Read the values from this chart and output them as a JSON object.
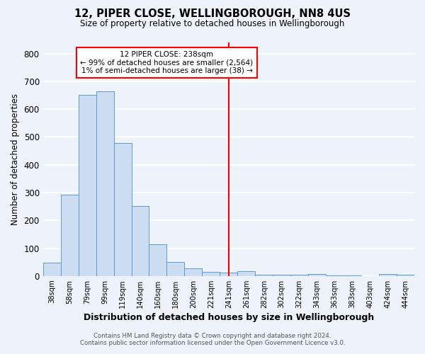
{
  "title": "12, PIPER CLOSE, WELLINGBOROUGH, NN8 4US",
  "subtitle": "Size of property relative to detached houses in Wellingborough",
  "xlabel": "Distribution of detached houses by size in Wellingborough",
  "ylabel": "Number of detached properties",
  "bar_labels": [
    "38sqm",
    "58sqm",
    "79sqm",
    "99sqm",
    "119sqm",
    "140sqm",
    "160sqm",
    "180sqm",
    "200sqm",
    "221sqm",
    "241sqm",
    "261sqm",
    "282sqm",
    "302sqm",
    "322sqm",
    "343sqm",
    "363sqm",
    "383sqm",
    "403sqm",
    "424sqm",
    "444sqm"
  ],
  "bar_values": [
    48,
    293,
    652,
    665,
    478,
    252,
    113,
    50,
    28,
    15,
    13,
    17,
    5,
    5,
    5,
    8,
    2,
    2,
    0,
    8,
    5
  ],
  "bar_color": "#ccddf2",
  "bar_edge_color": "#5b9bd5",
  "vline_x_index": 10,
  "vline_color": "red",
  "ylim": [
    0,
    840
  ],
  "yticks": [
    0,
    100,
    200,
    300,
    400,
    500,
    600,
    700,
    800
  ],
  "annotation_title": "12 PIPER CLOSE: 238sqm",
  "annotation_line1": "← 99% of detached houses are smaller (2,564)",
  "annotation_line2": "1% of semi-detached houses are larger (38) →",
  "footer_line1": "Contains HM Land Registry data © Crown copyright and database right 2024.",
  "footer_line2": "Contains public sector information licensed under the Open Government Licence v3.0.",
  "bg_color": "#eef2fb",
  "grid_color": "#ffffff"
}
